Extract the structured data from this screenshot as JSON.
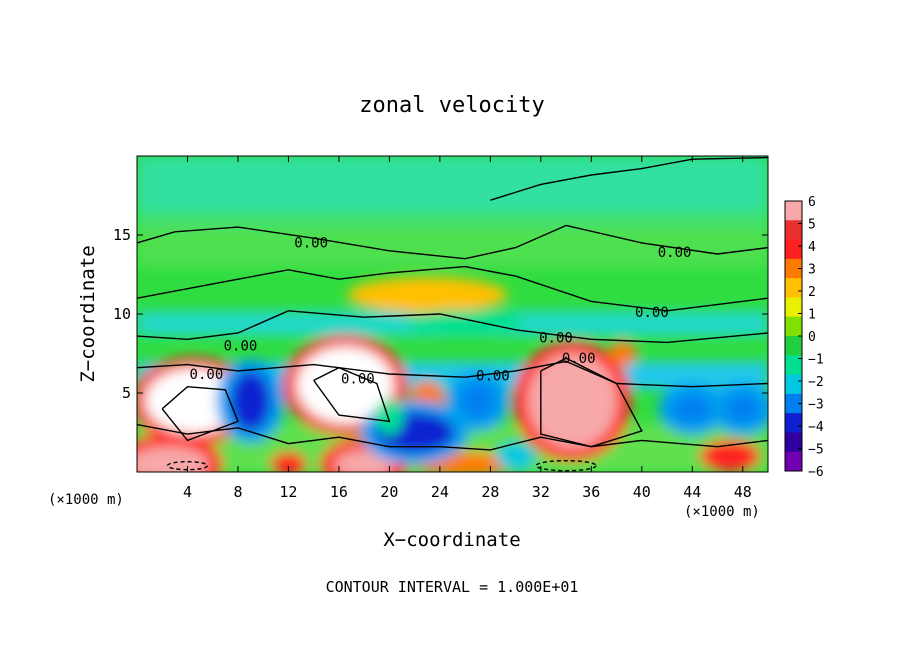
{
  "chart_data": {
    "type": "heatmap",
    "title": "zonal velocity",
    "xlabel": "X−coordinate",
    "ylabel": "Z−coordinate",
    "x_unit_label": "(×1000 m)",
    "y_unit_label": "(×1000 m)",
    "xlim": [
      0,
      50
    ],
    "ylim": [
      0,
      20
    ],
    "x_ticks": [
      4,
      8,
      12,
      16,
      20,
      24,
      28,
      32,
      36,
      40,
      44,
      48
    ],
    "y_ticks": [
      5,
      10,
      15
    ],
    "colorbar": {
      "min": -6,
      "max": 6,
      "ticks": [
        6,
        5,
        4,
        3,
        2,
        1,
        0,
        -1,
        -2,
        -3,
        -4,
        -5,
        -6
      ],
      "tick_labels": [
        "6",
        "5",
        "4",
        "3",
        "2",
        "1",
        "0",
        "−1",
        "−2",
        "−3",
        "−4",
        "−5",
        "−6"
      ],
      "colors": [
        "#f7a8a8",
        "#e83030",
        "#ff2020",
        "#ff7a00",
        "#ffc000",
        "#e8f000",
        "#80e000",
        "#20d040",
        "#00e090",
        "#00c8e0",
        "#0080f0",
        "#1020d0",
        "#3000a0",
        "#7000b0"
      ]
    },
    "field_features": [
      {
        "x": 4.5,
        "z": 4.5,
        "value": 7
      },
      {
        "x": 16.5,
        "z": 5.5,
        "value": 7
      },
      {
        "x": 34.5,
        "z": 4.5,
        "value": 6
      },
      {
        "x": 2.5,
        "z": 0.5,
        "value": 6
      },
      {
        "x": 12,
        "z": 0.5,
        "value": 4
      },
      {
        "x": 18,
        "z": 0.5,
        "value": 6
      },
      {
        "x": 26,
        "z": 0.5,
        "value": 3
      },
      {
        "x": 47,
        "z": 1.0,
        "value": 4
      },
      {
        "x": 23,
        "z": 4.5,
        "value": 3
      },
      {
        "x": 38.5,
        "z": 7.5,
        "value": 3
      },
      {
        "x": 23,
        "z": 11.2,
        "value": 2
      },
      {
        "x": 9,
        "z": 4.5,
        "value": -5
      },
      {
        "x": 22,
        "z": 2.5,
        "value": -5
      },
      {
        "x": 27,
        "z": 4.5,
        "value": -4
      },
      {
        "x": 30,
        "z": 1.0,
        "value": -3
      },
      {
        "x": 44,
        "z": 4.0,
        "value": -4
      },
      {
        "x": 48,
        "z": 4.0,
        "value": -4
      },
      {
        "x": 26,
        "z": 9.5,
        "value": -2
      },
      {
        "x": 20,
        "z": 3.5,
        "value": -2
      }
    ],
    "contour_labels": [
      "0.00",
      "0.00",
      "0.00",
      "0.00",
      "0.00",
      "0.00",
      "0.00",
      "0.00",
      "0.00"
    ],
    "contour_interval_text": "CONTOUR INTERVAL = 1.000E+01"
  }
}
